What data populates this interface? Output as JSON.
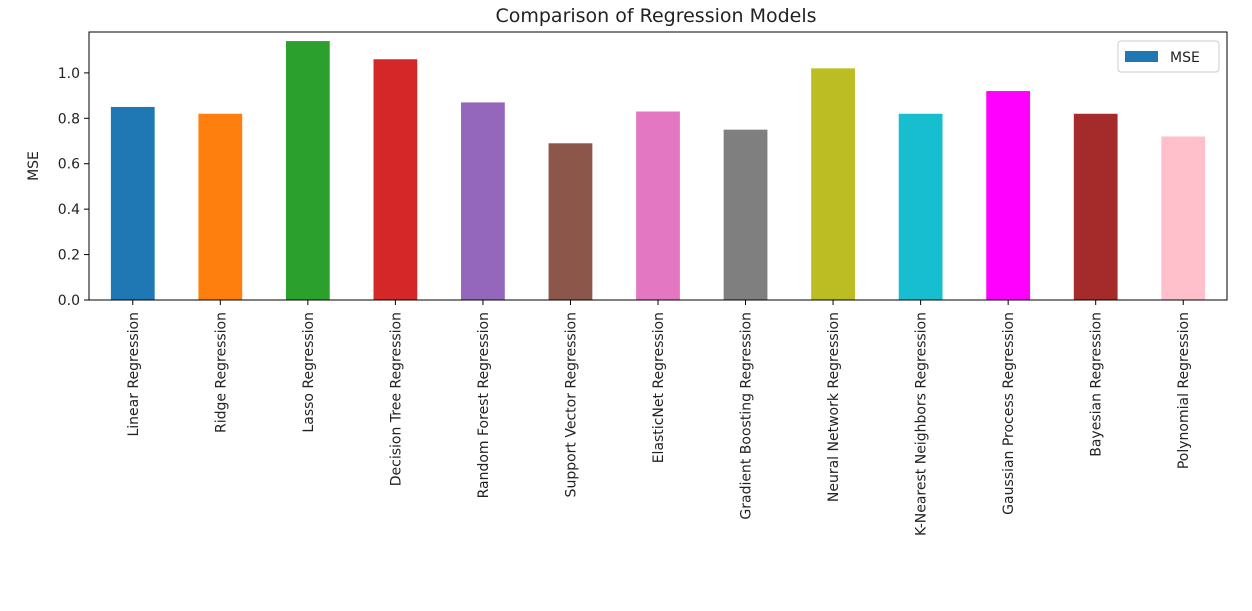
{
  "chart_data": {
    "type": "bar",
    "title": "Comparison of Regression Models",
    "xlabel": "",
    "ylabel": "MSE",
    "ylim": [
      0,
      1.18
    ],
    "yticks": [
      0.0,
      0.2,
      0.4,
      0.6,
      0.8,
      1.0
    ],
    "ytick_labels": [
      "0.0",
      "0.2",
      "0.4",
      "0.6",
      "0.8",
      "1.0"
    ],
    "grid": false,
    "legend": {
      "placement": "top-right",
      "entries": [
        "MSE"
      ]
    },
    "categories": [
      "Linear Regression",
      "Ridge Regression",
      "Lasso Regression",
      "Decision Tree Regression",
      "Random Forest Regression",
      "Support Vector Regression",
      "ElasticNet Regression",
      "Gradient Boosting Regression",
      "Neural Network Regression",
      "K-Nearest Neighbors Regression",
      "Gaussian Process Regression",
      "Bayesian Regression",
      "Polynomial Regression"
    ],
    "series": [
      {
        "name": "MSE",
        "values": [
          0.85,
          0.82,
          1.14,
          1.06,
          0.87,
          0.69,
          0.83,
          0.75,
          1.02,
          0.82,
          0.92,
          0.82,
          0.72
        ]
      }
    ],
    "colors": [
      "#1f77b4",
      "#ff7f0e",
      "#2ca02c",
      "#d62728",
      "#9467bd",
      "#8c564b",
      "#e377c2",
      "#7f7f7f",
      "#bcbd22",
      "#17becf",
      "#ff00ff",
      "#a52a2a",
      "#ffc0cb"
    ],
    "legend_color": "#1f77b4"
  }
}
